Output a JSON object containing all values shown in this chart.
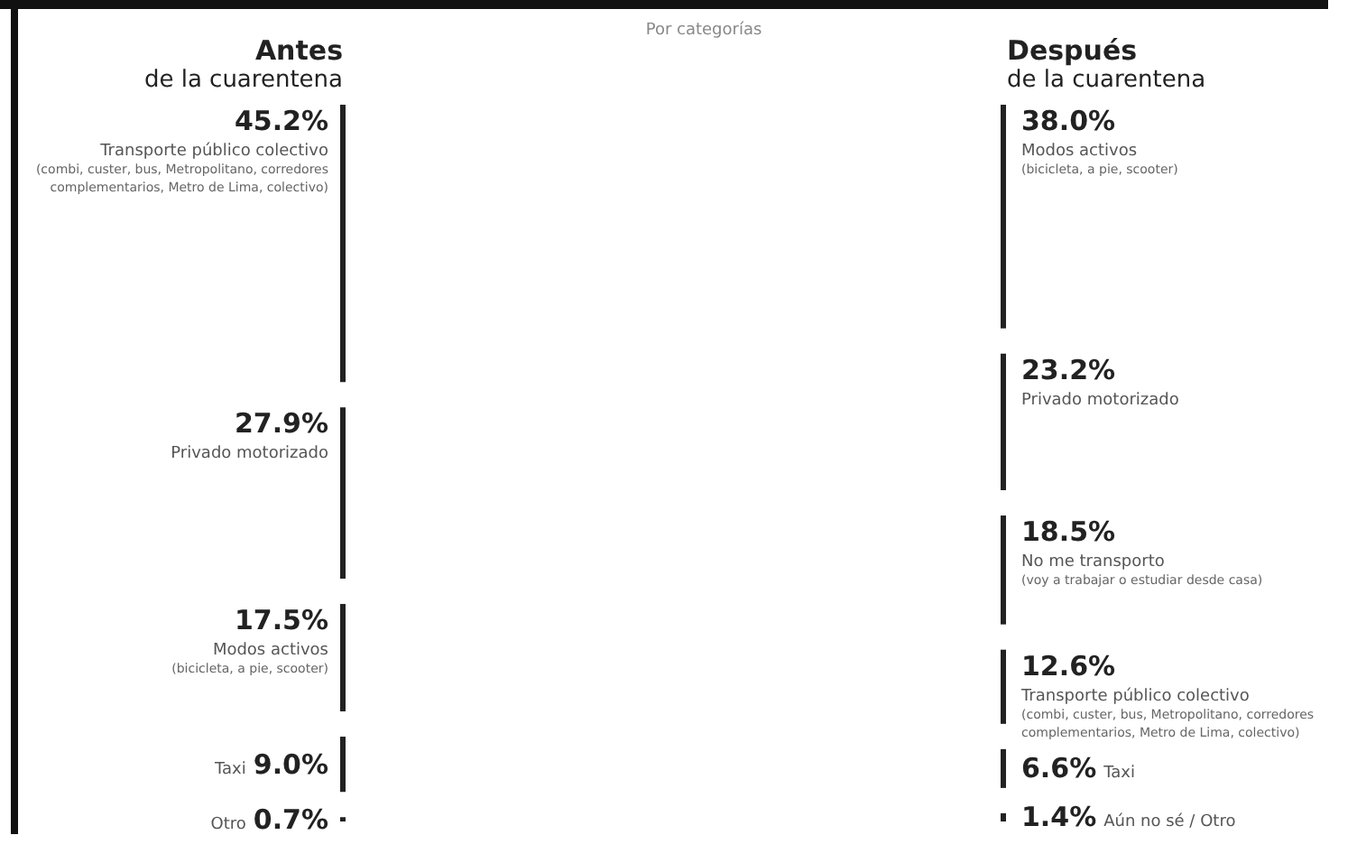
{
  "chart_data": [
    {
      "type": "other",
      "title": "Antes",
      "subtitle": "de la cuarentena",
      "annotations": [
        "Por categorías"
      ],
      "categories": [
        "Transporte público colectivo\n(combi, custer, bus, Metropolitano, corredores complementarios, Metro de Lima, colectivo)",
        "Privado motorizado",
        "Modos activos\n(bicicleta, a pie, scooter)",
        "Taxi",
        "Otro"
      ],
      "values": [
        45.2,
        27.9,
        17.5,
        9.0,
        0.7
      ],
      "value_labels": [
        "45.2%",
        "27.9%",
        "17.5%",
        "9.0%",
        "0.7%"
      ],
      "color": "#222222"
    },
    {
      "type": "other",
      "title": "Después",
      "subtitle": "de la cuarentena",
      "categories": [
        "Modos activos\n(bicicleta, a pie, scooter)",
        "Privado motorizado",
        "No me transporto\n(voy a trabajar o estudiar desde casa)",
        "Transporte público colectivo\n(combi, custer, bus, Metropolitano, corredores complementarios, Metro de Lima, colectivo)",
        "Taxi",
        "Aún no sé / Otro"
      ],
      "values": [
        38.0,
        23.2,
        18.5,
        12.6,
        6.6,
        1.4
      ],
      "value_labels": [
        "38.0%",
        "23.2%",
        "18.5%",
        "12.6%",
        "6.6%",
        "1.4%"
      ],
      "color": "#222222"
    }
  ]
}
